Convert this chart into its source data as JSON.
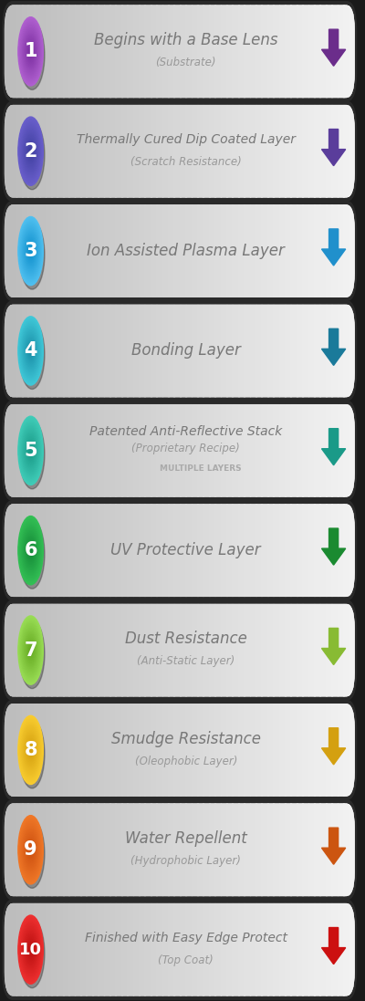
{
  "steps": [
    {
      "number": "1",
      "main_text": "Begins with a Base Lens",
      "sub_text": "(Substrate)",
      "sub_text2": "",
      "circle_color1": "#b060d0",
      "circle_color2": "#7b2fa0",
      "arrow_color": "#6b2d8b",
      "text_color": "#888888"
    },
    {
      "number": "2",
      "main_text": "Thermally Cured Dip Coated Layer",
      "sub_text": "(Scratch Resistance)",
      "sub_text2": "",
      "circle_color1": "#6a5fcc",
      "circle_color2": "#4040a0",
      "arrow_color": "#5a3d9b",
      "text_color": "#888888"
    },
    {
      "number": "3",
      "main_text": "Ion Assisted Plasma Layer",
      "sub_text": "",
      "sub_text2": "",
      "circle_color1": "#50c0f0",
      "circle_color2": "#1090cc",
      "arrow_color": "#2090cc",
      "text_color": "#888888"
    },
    {
      "number": "4",
      "main_text": "Bonding Layer",
      "sub_text": "",
      "sub_text2": "",
      "circle_color1": "#40c8d8",
      "circle_color2": "#1a8fa8",
      "arrow_color": "#1a7a9a",
      "text_color": "#888888"
    },
    {
      "number": "5",
      "main_text": "Patented Anti-Reflective Stack",
      "sub_text": "(Proprietary Recipe)",
      "sub_text2": "MULTIPLE LAYERS",
      "circle_color1": "#40ccb8",
      "circle_color2": "#1a9a88",
      "arrow_color": "#1a9a88",
      "text_color": "#888888"
    },
    {
      "number": "6",
      "main_text": "UV Protective Layer",
      "sub_text": "",
      "sub_text2": "",
      "circle_color1": "#33c055",
      "circle_color2": "#158a38",
      "arrow_color": "#1a8a30",
      "text_color": "#888888"
    },
    {
      "number": "7",
      "main_text": "Dust Resistance",
      "sub_text": "(Anti-Static Layer)",
      "sub_text2": "",
      "circle_color1": "#99dd55",
      "circle_color2": "#66aa22",
      "arrow_color": "#88bb33",
      "text_color": "#888888"
    },
    {
      "number": "8",
      "main_text": "Smudge Resistance",
      "sub_text": "(Oleophobic Layer)",
      "sub_text2": "",
      "circle_color1": "#f8cc30",
      "circle_color2": "#d4a010",
      "arrow_color": "#d4a010",
      "text_color": "#888888"
    },
    {
      "number": "9",
      "main_text": "Water Repellent",
      "sub_text": "(Hydrophobic Layer)",
      "sub_text2": "",
      "circle_color1": "#f07828",
      "circle_color2": "#cc5010",
      "arrow_color": "#cc5510",
      "text_color": "#888888"
    },
    {
      "number": "10",
      "main_text": "Finished with Easy Edge Protect",
      "sub_text": "(Top Coat)",
      "sub_text2": "",
      "circle_color1": "#ee3030",
      "circle_color2": "#bb1010",
      "arrow_color": "#cc1010",
      "text_color": "#888888"
    }
  ],
  "fig_width": 4.0,
  "fig_height": 10.97,
  "bg_color": "#1a1a1a"
}
